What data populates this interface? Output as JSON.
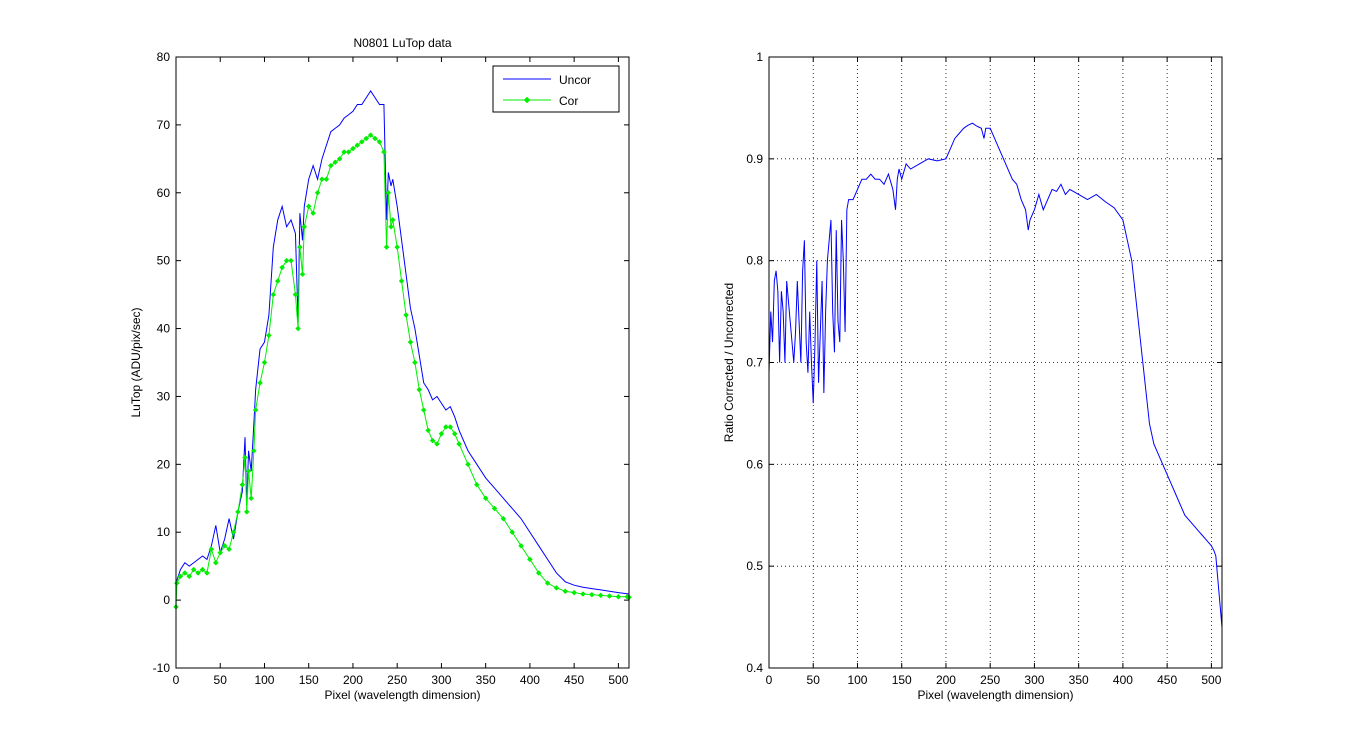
{
  "chart_data": [
    {
      "type": "line",
      "title": "N0801   LuTop data",
      "xlabel": "Pixel (wavelength dimension)",
      "ylabel": "LuTop (ADU/pix/sec)",
      "xlim": [
        0,
        512
      ],
      "ylim": [
        -10,
        80
      ],
      "xticks": [
        0,
        50,
        100,
        150,
        200,
        250,
        300,
        350,
        400,
        450,
        500
      ],
      "yticks": [
        -10,
        0,
        10,
        20,
        30,
        40,
        50,
        60,
        70,
        80
      ],
      "grid": false,
      "legend": "top-right",
      "series": [
        {
          "name": "Uncor",
          "color": "#0000ff",
          "marker": "none",
          "x": [
            0,
            5,
            10,
            15,
            20,
            25,
            30,
            35,
            40,
            45,
            50,
            55,
            60,
            65,
            70,
            75,
            78,
            80,
            82,
            85,
            88,
            90,
            95,
            100,
            105,
            110,
            115,
            120,
            125,
            130,
            135,
            138,
            140,
            143,
            145,
            150,
            155,
            160,
            165,
            170,
            175,
            180,
            185,
            190,
            195,
            200,
            205,
            210,
            215,
            220,
            225,
            230,
            235,
            238,
            240,
            243,
            245,
            250,
            255,
            260,
            265,
            270,
            275,
            280,
            285,
            290,
            295,
            300,
            305,
            310,
            315,
            320,
            330,
            340,
            350,
            360,
            370,
            380,
            390,
            400,
            410,
            420,
            430,
            440,
            450,
            460,
            470,
            480,
            490,
            500,
            512
          ],
          "y": [
            2.5,
            4.5,
            5.5,
            5,
            5.5,
            6,
            6.5,
            6,
            8,
            11,
            7,
            9,
            12,
            9,
            13,
            16,
            24,
            14,
            22,
            19,
            26,
            31,
            37,
            38,
            42,
            52,
            56,
            58,
            55,
            56,
            54,
            41,
            57,
            53,
            58,
            62,
            64,
            62,
            65,
            67,
            69,
            69.5,
            70,
            71,
            71.5,
            72,
            73,
            73,
            74,
            75,
            74,
            73,
            73,
            56,
            63,
            61,
            62,
            58,
            53,
            48,
            43,
            40,
            36,
            32,
            31,
            29.5,
            30,
            29,
            28,
            28.5,
            27,
            25,
            22,
            20,
            18,
            16.5,
            15,
            13.5,
            12,
            10,
            8,
            6,
            4,
            2.7,
            2.2,
            1.9,
            1.7,
            1.5,
            1.3,
            1.1,
            0.9
          ]
        },
        {
          "name": "Cor",
          "color": "#00ee00",
          "marker": "diamond",
          "x": [
            0,
            1,
            5,
            10,
            15,
            20,
            25,
            30,
            35,
            40,
            45,
            50,
            55,
            60,
            65,
            70,
            75,
            78,
            80,
            82,
            85,
            88,
            90,
            95,
            100,
            105,
            110,
            115,
            120,
            125,
            130,
            135,
            138,
            140,
            143,
            145,
            150,
            155,
            160,
            165,
            170,
            175,
            180,
            185,
            190,
            195,
            200,
            205,
            210,
            215,
            220,
            225,
            230,
            235,
            238,
            240,
            243,
            245,
            250,
            255,
            260,
            265,
            270,
            275,
            280,
            285,
            290,
            295,
            300,
            305,
            310,
            315,
            320,
            330,
            340,
            350,
            360,
            370,
            380,
            390,
            400,
            410,
            420,
            430,
            440,
            450,
            460,
            470,
            480,
            490,
            500,
            510,
            512
          ],
          "y": [
            -1,
            2.5,
            3.5,
            4,
            3.5,
            4.5,
            4,
            4.5,
            4,
            7.5,
            5.5,
            7,
            8,
            7.5,
            10,
            13,
            17,
            21,
            13,
            19,
            15,
            22,
            28,
            32,
            35,
            39,
            45,
            47,
            49,
            50,
            50,
            45,
            40,
            52,
            48,
            55,
            58,
            57,
            60,
            62,
            62,
            64,
            64.5,
            65,
            66,
            66,
            66.5,
            67,
            67.5,
            68,
            68.5,
            68,
            67.5,
            66,
            52,
            60,
            55,
            56,
            52,
            47,
            42,
            38,
            35,
            31,
            28,
            25,
            23.5,
            23,
            24.5,
            25.5,
            25.5,
            24.5,
            23,
            20,
            17,
            15,
            13.5,
            12,
            10,
            8,
            6,
            4,
            2.5,
            1.8,
            1.3,
            1.1,
            0.9,
            0.8,
            0.7,
            0.6,
            0.5,
            0.5,
            0.4
          ]
        }
      ]
    },
    {
      "type": "line",
      "title": "",
      "xlabel": "Pixel (wavelength dimension)",
      "ylabel": "Ratio Corrected / Uncorrected",
      "xlim": [
        0,
        512
      ],
      "ylim": [
        0.4,
        1.0
      ],
      "xticks": [
        0,
        50,
        100,
        150,
        200,
        250,
        300,
        350,
        400,
        450,
        500
      ],
      "yticks": [
        0.4,
        0.5,
        0.6,
        0.7,
        0.8,
        0.9,
        1.0
      ],
      "grid": true,
      "legend": "none",
      "series": [
        {
          "color": "#0000ff",
          "marker": "none",
          "x": [
            0,
            2,
            4,
            6,
            8,
            10,
            12,
            14,
            16,
            18,
            20,
            22,
            24,
            26,
            28,
            30,
            32,
            34,
            36,
            38,
            40,
            42,
            44,
            46,
            48,
            50,
            52,
            54,
            56,
            58,
            60,
            62,
            64,
            66,
            68,
            70,
            72,
            74,
            76,
            78,
            80,
            82,
            84,
            86,
            88,
            90,
            95,
            100,
            105,
            110,
            115,
            120,
            125,
            130,
            135,
            140,
            143,
            145,
            147,
            150,
            155,
            160,
            170,
            180,
            190,
            200,
            205,
            210,
            215,
            220,
            225,
            230,
            235,
            240,
            243,
            245,
            250,
            255,
            260,
            265,
            270,
            275,
            280,
            285,
            290,
            293,
            295,
            300,
            305,
            310,
            315,
            320,
            325,
            330,
            335,
            340,
            350,
            360,
            370,
            380,
            390,
            400,
            405,
            410,
            415,
            420,
            425,
            430,
            435,
            440,
            445,
            450,
            455,
            460,
            465,
            470,
            475,
            480,
            485,
            490,
            495,
            500,
            503,
            505,
            508,
            510,
            512
          ],
          "y": [
            0.69,
            0.75,
            0.72,
            0.78,
            0.79,
            0.77,
            0.7,
            0.77,
            0.75,
            0.7,
            0.78,
            0.76,
            0.74,
            0.72,
            0.7,
            0.73,
            0.78,
            0.74,
            0.7,
            0.79,
            0.82,
            0.72,
            0.69,
            0.75,
            0.7,
            0.66,
            0.72,
            0.8,
            0.68,
            0.73,
            0.78,
            0.67,
            0.75,
            0.8,
            0.82,
            0.84,
            0.75,
            0.71,
            0.83,
            0.74,
            0.72,
            0.84,
            0.8,
            0.73,
            0.85,
            0.86,
            0.86,
            0.87,
            0.88,
            0.88,
            0.885,
            0.88,
            0.88,
            0.875,
            0.885,
            0.87,
            0.85,
            0.88,
            0.89,
            0.88,
            0.895,
            0.89,
            0.895,
            0.9,
            0.898,
            0.9,
            0.91,
            0.92,
            0.925,
            0.93,
            0.933,
            0.935,
            0.932,
            0.93,
            0.92,
            0.93,
            0.93,
            0.92,
            0.91,
            0.9,
            0.89,
            0.88,
            0.875,
            0.86,
            0.85,
            0.83,
            0.84,
            0.85,
            0.865,
            0.85,
            0.86,
            0.87,
            0.868,
            0.875,
            0.865,
            0.87,
            0.865,
            0.86,
            0.865,
            0.858,
            0.852,
            0.84,
            0.82,
            0.8,
            0.76,
            0.72,
            0.68,
            0.64,
            0.62,
            0.61,
            0.6,
            0.59,
            0.58,
            0.57,
            0.56,
            0.55,
            0.545,
            0.54,
            0.535,
            0.53,
            0.525,
            0.52,
            0.515,
            0.51,
            0.48,
            0.46,
            0.44
          ]
        }
      ]
    }
  ]
}
